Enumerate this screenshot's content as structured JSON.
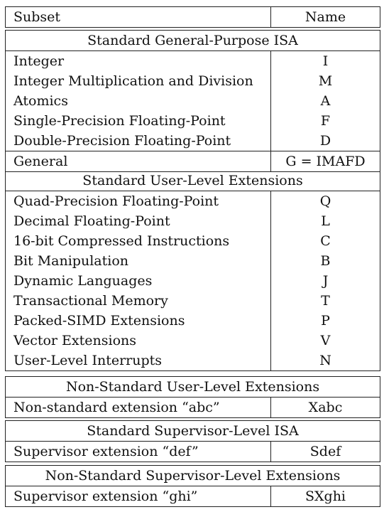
{
  "header": {
    "subset": "Subset",
    "name": "Name"
  },
  "groups": [
    {
      "title": "Standard General-Purpose ISA",
      "rows": [
        {
          "subset": "Integer",
          "name": "I"
        },
        {
          "subset": "Integer Multiplication and Division",
          "name": "M"
        },
        {
          "subset": "Atomics",
          "name": "A"
        },
        {
          "subset": "Single-Precision Floating-Point",
          "name": "F"
        },
        {
          "subset": "Double-Precision Floating-Point",
          "name": "D"
        }
      ],
      "summary": {
        "subset": "General",
        "name": "G = IMAFD"
      }
    },
    {
      "title": "Standard User-Level Extensions",
      "rows": [
        {
          "subset": "Quad-Precision Floating-Point",
          "name": "Q"
        },
        {
          "subset": "Decimal Floating-Point",
          "name": "L"
        },
        {
          "subset": "16-bit Compressed Instructions",
          "name": "C"
        },
        {
          "subset": "Bit Manipulation",
          "name": "B"
        },
        {
          "subset": "Dynamic Languages",
          "name": "J"
        },
        {
          "subset": "Transactional Memory",
          "name": "T"
        },
        {
          "subset": "Packed-SIMD Extensions",
          "name": "P"
        },
        {
          "subset": "Vector Extensions",
          "name": "V"
        },
        {
          "subset": "User-Level Interrupts",
          "name": "N"
        }
      ]
    },
    {
      "title": "Non-Standard User-Level Extensions",
      "rows": [
        {
          "subset": "Non-standard extension “abc”",
          "name": "Xabc"
        }
      ]
    },
    {
      "title": "Standard Supervisor-Level ISA",
      "rows": [
        {
          "subset": "Supervisor extension “def”",
          "name": "Sdef"
        }
      ]
    },
    {
      "title": "Non-Standard Supervisor-Level Extensions",
      "rows": [
        {
          "subset": "Supervisor extension “ghi”",
          "name": "SXghi"
        }
      ]
    }
  ]
}
